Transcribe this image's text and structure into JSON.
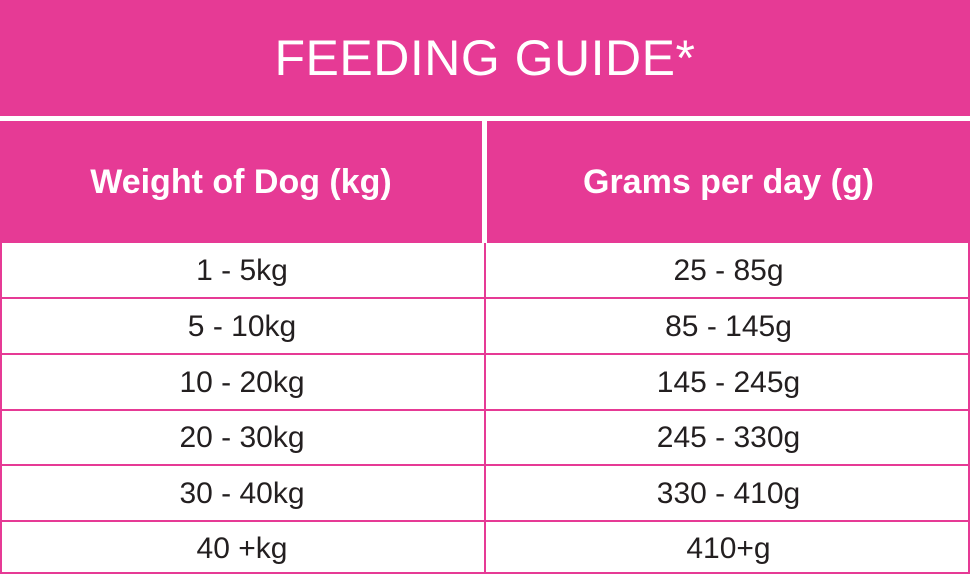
{
  "title": "FEEDING GUIDE*",
  "headers": {
    "weight": "Weight of Dog (kg)",
    "grams": "Grams per day (g)"
  },
  "rows": [
    {
      "weight": "1 - 5kg",
      "grams": "25 - 85g"
    },
    {
      "weight": "5 - 10kg",
      "grams": "85 - 145g"
    },
    {
      "weight": "10 - 20kg",
      "grams": "145 - 245g"
    },
    {
      "weight": "20 - 30kg",
      "grams": "245 - 330g"
    },
    {
      "weight": "30 - 40kg",
      "grams": "330 - 410g"
    },
    {
      "weight": "40 +kg",
      "grams": "410+g"
    }
  ],
  "colors": {
    "accent": "#e63a95",
    "text": "#231f20",
    "background": "#ffffff"
  }
}
